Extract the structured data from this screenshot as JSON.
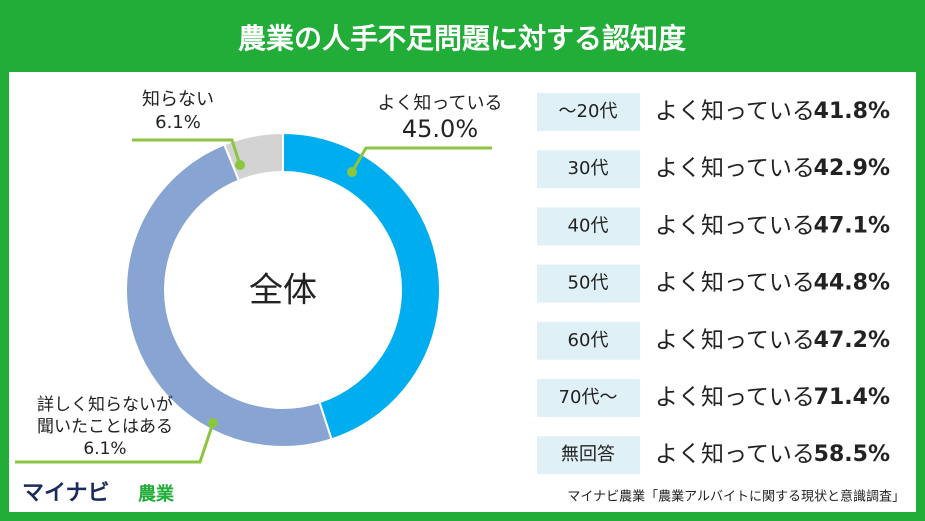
{
  "header": {
    "title": "農業の人手不足問題に対する認知度"
  },
  "chart_data": [
    {
      "type": "pie",
      "center_label": "全体",
      "categories": [
        "よく知っている",
        "詳しく知らないが聞いたことはある",
        "知らない"
      ],
      "category_lines": [
        [
          "よく知っている"
        ],
        [
          "詳しく知らないが",
          "聞いたことはある"
        ],
        [
          "知らない"
        ]
      ],
      "values": [
        45.0,
        6.1,
        6.1
      ],
      "value_labels": [
        "45.0%",
        "6.1%",
        "6.1%"
      ],
      "colors": [
        "#00aeef",
        "#88a4d2",
        "#d3d3d3"
      ]
    },
    {
      "type": "list",
      "label": "よく知っている",
      "categories": [
        "〜20代",
        "30代",
        "40代",
        "50代",
        "60代",
        "70代〜",
        "無回答"
      ],
      "values": [
        41.8,
        42.9,
        47.1,
        44.8,
        47.2,
        71.4,
        58.5
      ],
      "value_labels": [
        "41.8%",
        "42.9%",
        "47.1%",
        "44.8%",
        "47.2%",
        "71.4%",
        "58.5%"
      ]
    }
  ],
  "footer": {
    "logo": "マイナビ",
    "logo_sub": "農業",
    "source": "マイナビ農業「農業アルバイトに関する現状と意識調査」"
  }
}
